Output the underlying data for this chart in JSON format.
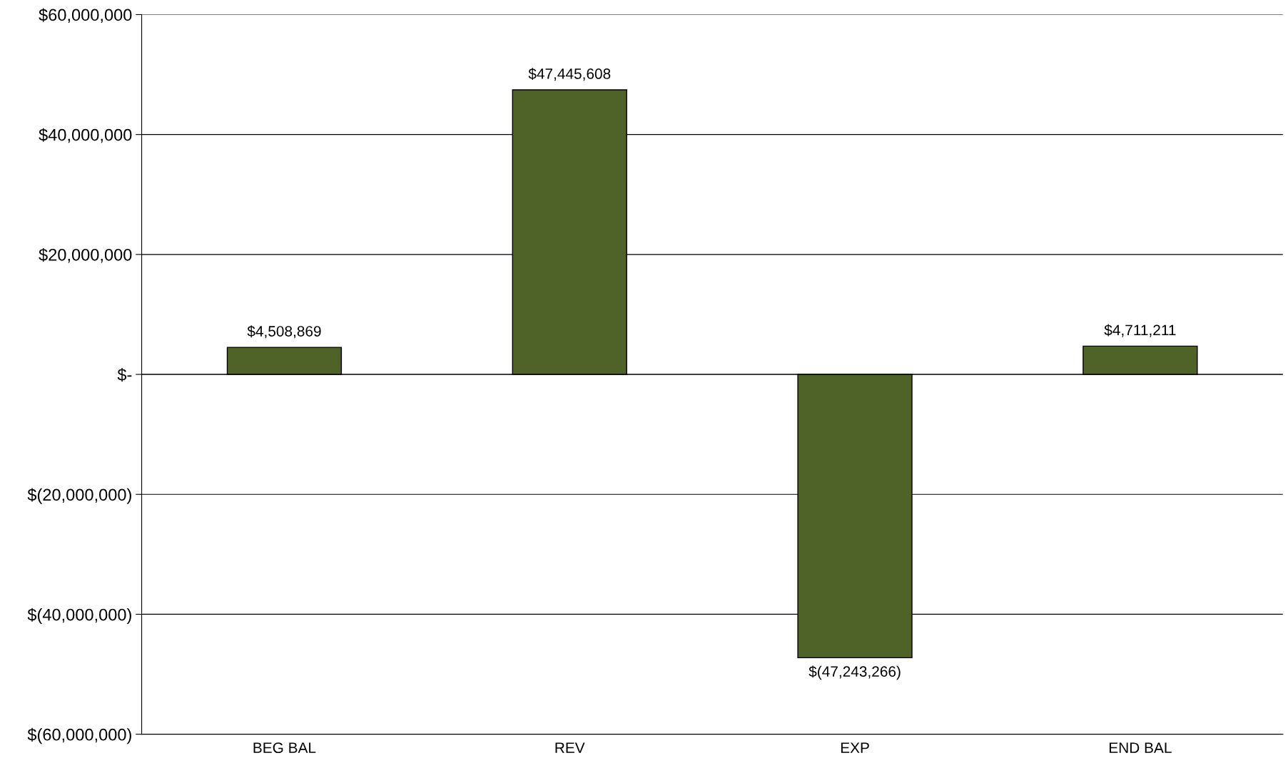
{
  "chart_data": {
    "type": "bar",
    "categories": [
      "BEG BAL",
      "REV",
      "EXP",
      "END BAL"
    ],
    "values": [
      4508869,
      47445608,
      -47243266,
      4711211
    ],
    "value_labels": [
      "$4,508,869",
      "$47,445,608",
      "$(47,243,266)",
      "$4,711,211"
    ],
    "color": "#4f6228",
    "ylim": [
      -60000000,
      60000000
    ],
    "yticks": [
      {
        "value": -60000000,
        "label": "$(60,000,000)"
      },
      {
        "value": -40000000,
        "label": "$(40,000,000)"
      },
      {
        "value": -20000000,
        "label": "$(20,000,000)"
      },
      {
        "value": 0,
        "label": "$-"
      },
      {
        "value": 20000000,
        "label": "$20,000,000"
      },
      {
        "value": 40000000,
        "label": "$40,000,000"
      },
      {
        "value": 60000000,
        "label": "$60,000,000"
      }
    ],
    "grid": "y",
    "legend": false
  }
}
